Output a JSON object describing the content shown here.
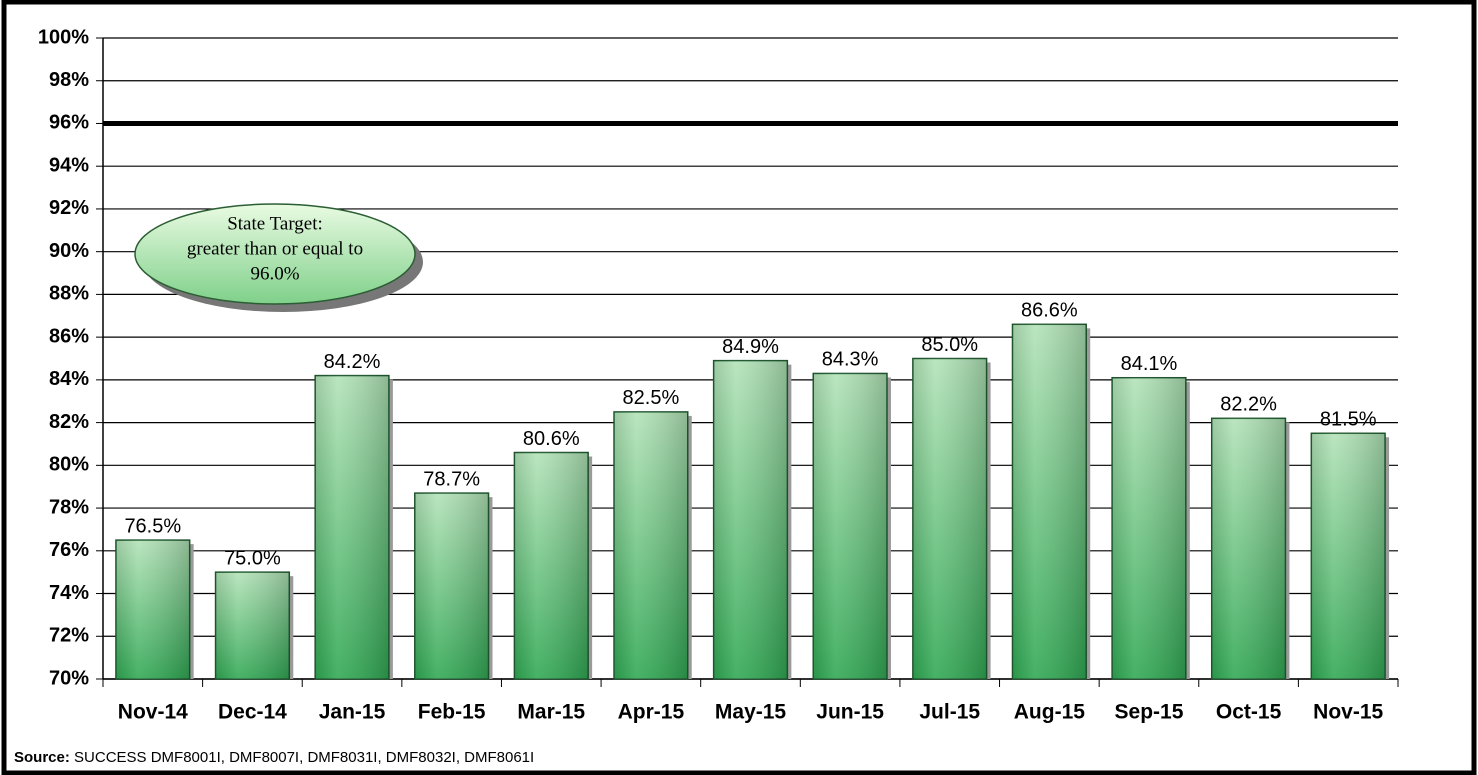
{
  "chart_data": {
    "type": "bar",
    "categories": [
      "Nov-14",
      "Dec-14",
      "Jan-15",
      "Feb-15",
      "Mar-15",
      "Apr-15",
      "May-15",
      "Jun-15",
      "Jul-15",
      "Aug-15",
      "Sep-15",
      "Oct-15",
      "Nov-15"
    ],
    "values": [
      76.5,
      75.0,
      84.2,
      78.7,
      80.6,
      82.5,
      84.9,
      84.3,
      85.0,
      86.6,
      84.1,
      82.2,
      81.5
    ],
    "value_labels": [
      "76.5%",
      "75.0%",
      "84.2%",
      "78.7%",
      "80.6%",
      "82.5%",
      "84.9%",
      "84.3%",
      "85.0%",
      "86.6%",
      "84.1%",
      "82.2%",
      "81.5%"
    ],
    "color": "#2fa852",
    "ylim": [
      70,
      100
    ],
    "yticks": [
      {
        "value": 70,
        "label": "70%"
      },
      {
        "value": 72,
        "label": "72%"
      },
      {
        "value": 74,
        "label": "74%"
      },
      {
        "value": 76,
        "label": "76%"
      },
      {
        "value": 78,
        "label": "78%"
      },
      {
        "value": 80,
        "label": "80%"
      },
      {
        "value": 82,
        "label": "82%"
      },
      {
        "value": 84,
        "label": "84%"
      },
      {
        "value": 86,
        "label": "86%"
      },
      {
        "value": 88,
        "label": "88%"
      },
      {
        "value": 90,
        "label": "90%"
      },
      {
        "value": 92,
        "label": "92%"
      },
      {
        "value": 94,
        "label": "94%"
      },
      {
        "value": 96,
        "label": "96%"
      },
      {
        "value": 98,
        "label": "98%"
      },
      {
        "value": 100,
        "label": "100%"
      }
    ],
    "grid": true,
    "target": 96,
    "annotation": [
      "State Target:",
      "greater than or equal to",
      "96.0%"
    ],
    "source_label": "Source:",
    "source": "SUCCESS DMF8001I, DMF8007I, DMF8031I, DMF8032I, DMF8061I"
  }
}
